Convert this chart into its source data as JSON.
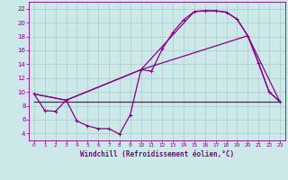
{
  "background_color": "#cce8e8",
  "grid_color": "#aacccc",
  "line_color": "#880088",
  "xlabel": "Windchill (Refroidissement éolien,°C)",
  "xlim": [
    -0.5,
    23.5
  ],
  "ylim": [
    3.0,
    23.0
  ],
  "yticks": [
    4,
    6,
    8,
    10,
    12,
    14,
    16,
    18,
    20,
    22
  ],
  "xticks": [
    0,
    1,
    2,
    3,
    4,
    5,
    6,
    7,
    8,
    9,
    10,
    11,
    12,
    13,
    14,
    15,
    16,
    17,
    18,
    19,
    20,
    21,
    22,
    23
  ],
  "line1_x": [
    0,
    1,
    2,
    3,
    4,
    5,
    6,
    7,
    8,
    9,
    10,
    11,
    12,
    13,
    14,
    15,
    16,
    17,
    18,
    19,
    20,
    21,
    22,
    23
  ],
  "line1_y": [
    9.7,
    7.3,
    7.2,
    8.8,
    5.8,
    5.1,
    4.7,
    4.7,
    3.9,
    6.7,
    13.2,
    13.0,
    16.2,
    18.6,
    20.4,
    21.6,
    21.7,
    21.7,
    21.5,
    20.5,
    18.1,
    14.2,
    10.0,
    8.6
  ],
  "line2_x": [
    0,
    3,
    10,
    15,
    16,
    17,
    18,
    19,
    20,
    21,
    22,
    23
  ],
  "line2_y": [
    9.7,
    8.8,
    13.2,
    21.6,
    21.7,
    21.7,
    21.5,
    20.5,
    18.1,
    14.2,
    10.0,
    8.6
  ],
  "line3_x": [
    0,
    23
  ],
  "line3_y": [
    8.6,
    8.6
  ],
  "line4_x": [
    0,
    3,
    10,
    20,
    23
  ],
  "line4_y": [
    9.7,
    8.8,
    13.2,
    18.1,
    8.6
  ]
}
